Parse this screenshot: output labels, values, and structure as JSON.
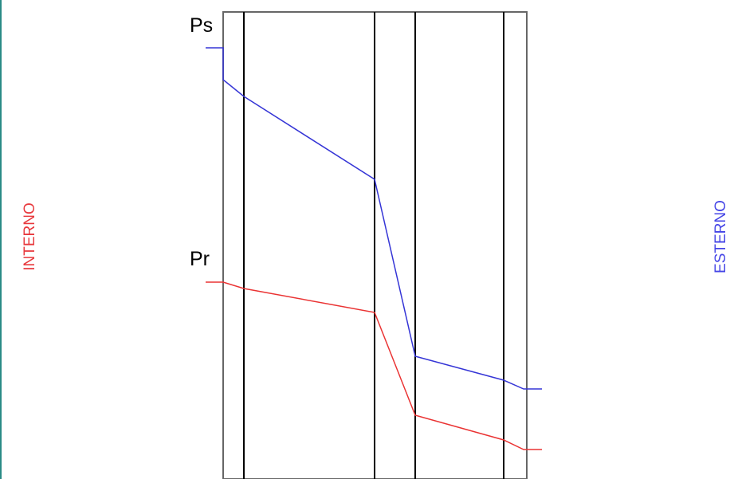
{
  "labels": {
    "interior": "INTERNO",
    "exterior": "ESTERNO",
    "saturation_pressure": "Ps",
    "real_pressure": "Pr"
  },
  "colors": {
    "left_border": "#2a8b86",
    "frame": "#666666",
    "layer_line": "#000000",
    "interior_text": "#e8393d",
    "exterior_text": "#4545e6",
    "saturation_curve": "#3535d6",
    "real_curve": "#ea3333"
  }
}
